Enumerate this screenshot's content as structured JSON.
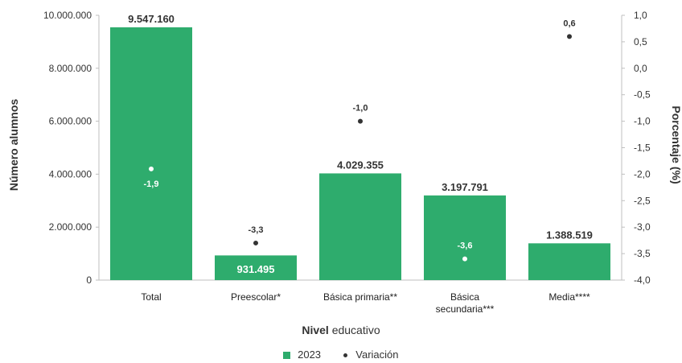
{
  "chart_data": {
    "type": "bar",
    "categories": [
      "Total",
      "Preescolar*",
      "Básica primaria**",
      "Básica\nsecundaria***",
      "Media****"
    ],
    "series": [
      {
        "name": "2023",
        "kind": "bar",
        "axis": "left",
        "values": [
          9547160,
          931495,
          4029355,
          3197791,
          1388519
        ],
        "labels": [
          "9.547.160",
          "931.495",
          "4.029.355",
          "3.197.791",
          "1.388.519"
        ]
      },
      {
        "name": "Variación",
        "kind": "point",
        "axis": "right",
        "values": [
          -1.9,
          -3.3,
          -1.0,
          -3.6,
          0.6
        ],
        "labels": [
          "-1,9",
          "-3,3",
          "-1,0",
          "-3,6",
          "0,6"
        ]
      }
    ],
    "ylabel": "Número alumnos",
    "ylabel_right": "Porcentaje (%)",
    "xlabel_bold": "Nivel",
    "xlabel_rest": "educativo",
    "ylim": [
      0,
      10000000
    ],
    "ylim_right": [
      -4.0,
      1.0
    ],
    "yticks": [
      "0",
      "2.000.000",
      "4.000.000",
      "6.000.000",
      "8.000.000",
      "10.000.000"
    ],
    "yticks_right": [
      "-4,0",
      "-3,5",
      "-3,0",
      "-2,5",
      "-2,0",
      "-1,5",
      "-1,0",
      "-0,5",
      "0,0",
      "0,5",
      "1,0"
    ],
    "grid": false,
    "legend_position": "bottom",
    "colors": {
      "bar": "#2eac6d",
      "point": "#333333",
      "point_inside": "#ffffff"
    }
  }
}
